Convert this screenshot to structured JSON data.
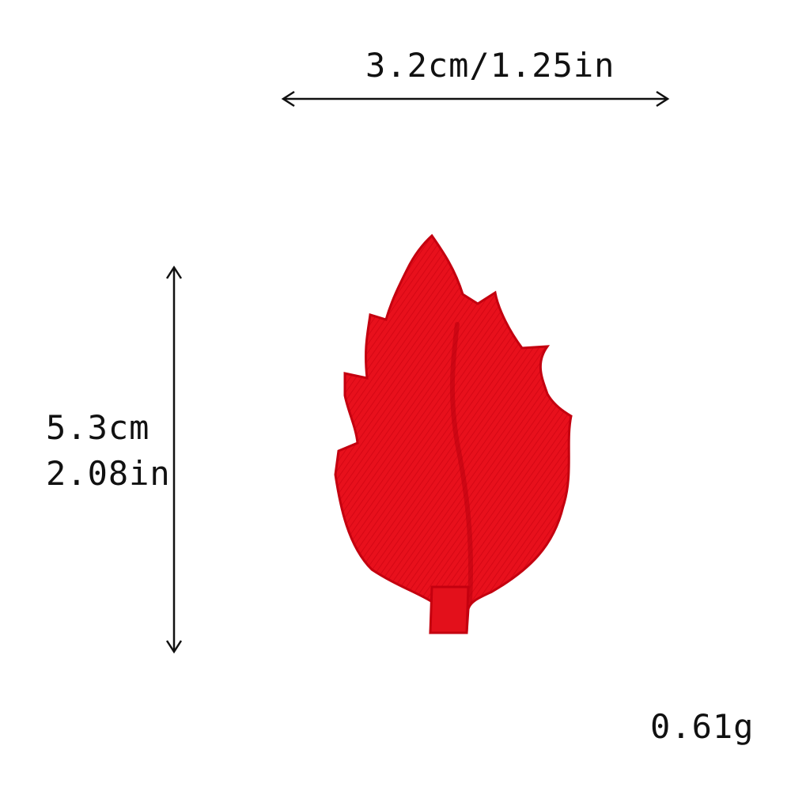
{
  "measurements": {
    "width_label": "3.2cm/1.25in",
    "height_cm_label": "5.3cm",
    "height_in_label": "2.08in",
    "weight_label": "0.61g"
  },
  "product": {
    "icon": "leaf-icon",
    "color": "#e8101c",
    "shadow_color": "#b8000e"
  },
  "arrow_color": "#111111"
}
